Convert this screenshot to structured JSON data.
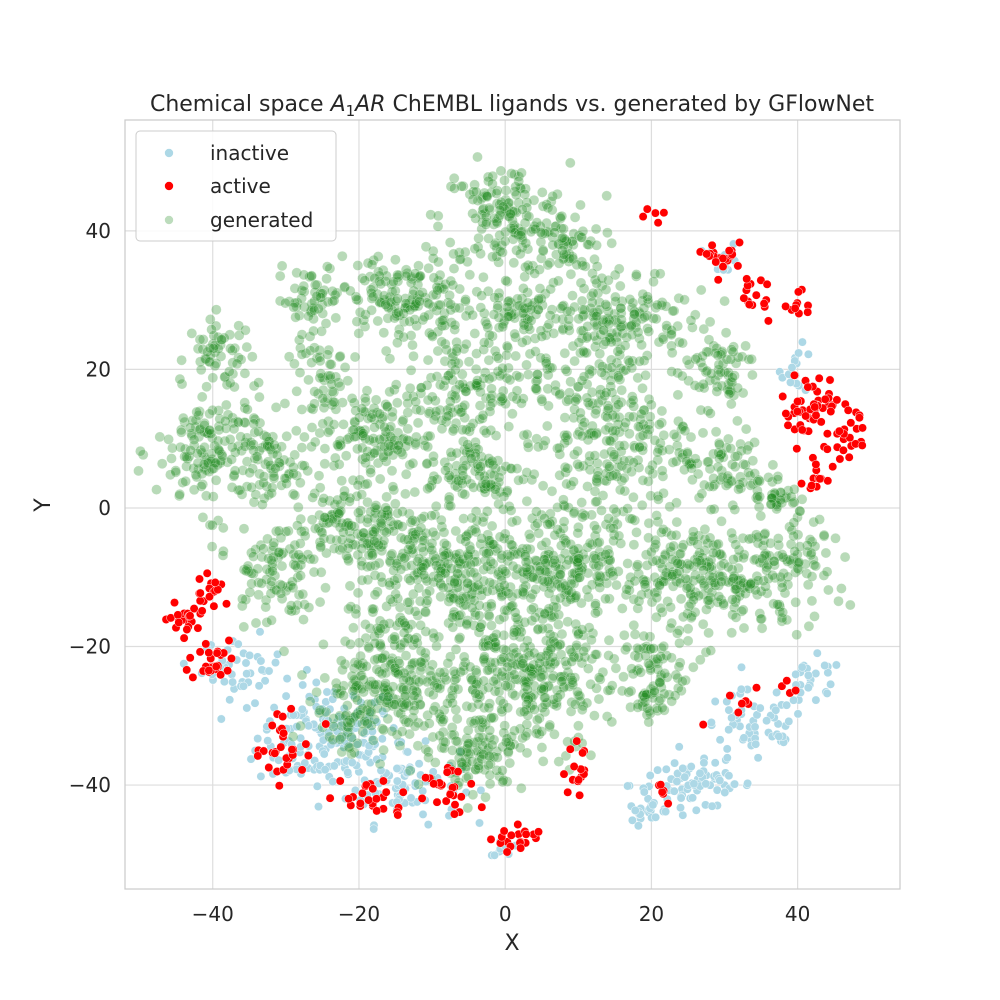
{
  "chart_data": {
    "type": "scatter",
    "title_prefix": "Chemical space ",
    "title_math_main": "A",
    "title_math_sub": "1",
    "title_math_after": "AR",
    "title_suffix": " ChEMBL ligands vs. generated by GFlowNet",
    "xlabel": "X",
    "ylabel": "Y",
    "xlim": [
      -52,
      54
    ],
    "ylim": [
      -55,
      56
    ],
    "xticks": [
      -40,
      -20,
      0,
      20,
      40
    ],
    "yticks": [
      -40,
      -20,
      0,
      20,
      40
    ],
    "xtick_labels": [
      "−40",
      "−20",
      "0",
      "20",
      "40"
    ],
    "ytick_labels": [
      "−40",
      "−20",
      "0",
      "20",
      "40"
    ],
    "grid": true,
    "legend_position": "top-left",
    "series": [
      {
        "name": "inactive",
        "color": "#add8e6",
        "clusters": [
          {
            "cx": -24,
            "cy": -33,
            "rx": 9,
            "ry": 7,
            "n": 170
          },
          {
            "cx": -14,
            "cy": -40,
            "rx": 7,
            "ry": 5,
            "n": 70
          },
          {
            "cx": -36,
            "cy": -23,
            "rx": 5,
            "ry": 4,
            "n": 40
          },
          {
            "cx": 26,
            "cy": -40,
            "rx": 8,
            "ry": 3,
            "n": 80
          },
          {
            "cx": 34,
            "cy": -32,
            "rx": 7,
            "ry": 5,
            "n": 60
          },
          {
            "cx": 42,
            "cy": -25,
            "rx": 4,
            "ry": 3,
            "n": 25
          },
          {
            "cx": 20,
            "cy": -44,
            "rx": 3,
            "ry": 2,
            "n": 20
          },
          {
            "cx": 30,
            "cy": 36,
            "rx": 2,
            "ry": 2,
            "n": 15
          },
          {
            "cx": 40,
            "cy": 20,
            "rx": 2,
            "ry": 3,
            "n": 15
          },
          {
            "cx": 0,
            "cy": -49,
            "rx": 2,
            "ry": 1,
            "n": 10
          }
        ]
      },
      {
        "name": "active",
        "color": "#ff0000",
        "clusters": [
          {
            "cx": -44,
            "cy": -16,
            "rx": 2,
            "ry": 1.5,
            "n": 22
          },
          {
            "cx": -40,
            "cy": -12,
            "rx": 2,
            "ry": 3,
            "n": 18
          },
          {
            "cx": -40,
            "cy": -22,
            "rx": 3,
            "ry": 3,
            "n": 30
          },
          {
            "cx": -30,
            "cy": -35,
            "rx": 4,
            "ry": 4,
            "n": 30
          },
          {
            "cx": -18,
            "cy": -42,
            "rx": 4,
            "ry": 3,
            "n": 25
          },
          {
            "cx": -8,
            "cy": -41,
            "rx": 4,
            "ry": 4,
            "n": 25
          },
          {
            "cx": 2,
            "cy": -48,
            "rx": 3,
            "ry": 2,
            "n": 20
          },
          {
            "cx": 10,
            "cy": -38,
            "rx": 2,
            "ry": 3,
            "n": 15
          },
          {
            "cx": 30,
            "cy": 36,
            "rx": 2,
            "ry": 2,
            "n": 20
          },
          {
            "cx": 34,
            "cy": 31,
            "rx": 2,
            "ry": 3,
            "n": 15
          },
          {
            "cx": 40,
            "cy": 30,
            "rx": 2,
            "ry": 2,
            "n": 10
          },
          {
            "cx": 42,
            "cy": 14,
            "rx": 4,
            "ry": 5,
            "n": 55
          },
          {
            "cx": 47,
            "cy": 10,
            "rx": 2,
            "ry": 3,
            "n": 20
          },
          {
            "cx": 43,
            "cy": 4,
            "rx": 2,
            "ry": 2,
            "n": 12
          },
          {
            "cx": 20,
            "cy": 42,
            "rx": 3,
            "ry": 1,
            "n": 5
          },
          {
            "cx": 34,
            "cy": -28,
            "rx": 6,
            "ry": 3,
            "n": 12
          },
          {
            "cx": 22,
            "cy": -41,
            "rx": 2,
            "ry": 2,
            "n": 6
          }
        ]
      },
      {
        "name": "generated",
        "color": "#228b22",
        "clusters": [
          {
            "cx": 0,
            "cy": 42,
            "rx": 8,
            "ry": 7,
            "n": 160
          },
          {
            "cx": 8,
            "cy": 38,
            "rx": 5,
            "ry": 4,
            "n": 60
          },
          {
            "cx": -14,
            "cy": 30,
            "rx": 9,
            "ry": 6,
            "n": 180
          },
          {
            "cx": 2,
            "cy": 28,
            "rx": 5,
            "ry": 4,
            "n": 80
          },
          {
            "cx": -27,
            "cy": 30,
            "rx": 4,
            "ry": 4,
            "n": 50
          },
          {
            "cx": -24,
            "cy": 17,
            "rx": 5,
            "ry": 7,
            "n": 70
          },
          {
            "cx": -39,
            "cy": 22,
            "rx": 4,
            "ry": 5,
            "n": 55
          },
          {
            "cx": -40,
            "cy": 8,
            "rx": 7,
            "ry": 8,
            "n": 160
          },
          {
            "cx": -32,
            "cy": 6,
            "rx": 4,
            "ry": 6,
            "n": 60
          },
          {
            "cx": -6,
            "cy": 17,
            "rx": 10,
            "ry": 7,
            "n": 180
          },
          {
            "cx": -18,
            "cy": 10,
            "rx": 6,
            "ry": 5,
            "n": 110
          },
          {
            "cx": -4,
            "cy": 5,
            "rx": 6,
            "ry": 5,
            "n": 100
          },
          {
            "cx": 15,
            "cy": 27,
            "rx": 9,
            "ry": 8,
            "n": 200
          },
          {
            "cx": 14,
            "cy": 10,
            "rx": 10,
            "ry": 10,
            "n": 250
          },
          {
            "cx": 29,
            "cy": 20,
            "rx": 5,
            "ry": 5,
            "n": 70
          },
          {
            "cx": 30,
            "cy": 6,
            "rx": 5,
            "ry": 5,
            "n": 70
          },
          {
            "cx": 37,
            "cy": 2,
            "rx": 3,
            "ry": 3,
            "n": 35
          },
          {
            "cx": -20,
            "cy": -2,
            "rx": 8,
            "ry": 5,
            "n": 140
          },
          {
            "cx": -32,
            "cy": -9,
            "rx": 5,
            "ry": 7,
            "n": 100
          },
          {
            "cx": -8,
            "cy": -10,
            "rx": 12,
            "ry": 9,
            "n": 350
          },
          {
            "cx": 8,
            "cy": -8,
            "rx": 10,
            "ry": 8,
            "n": 260
          },
          {
            "cx": 26,
            "cy": -10,
            "rx": 9,
            "ry": 8,
            "n": 230
          },
          {
            "cx": 38,
            "cy": -9,
            "rx": 6,
            "ry": 7,
            "n": 120
          },
          {
            "cx": 21,
            "cy": -22,
            "rx": 5,
            "ry": 4,
            "n": 60
          },
          {
            "cx": -14,
            "cy": -25,
            "rx": 9,
            "ry": 8,
            "n": 260
          },
          {
            "cx": 3,
            "cy": -25,
            "rx": 10,
            "ry": 9,
            "n": 320
          },
          {
            "cx": -4,
            "cy": -36,
            "rx": 6,
            "ry": 4,
            "n": 90
          },
          {
            "cx": 20,
            "cy": -28,
            "rx": 3,
            "ry": 3,
            "n": 35
          },
          {
            "cx": -22,
            "cy": -30,
            "rx": 5,
            "ry": 5,
            "n": 40
          }
        ]
      }
    ]
  }
}
